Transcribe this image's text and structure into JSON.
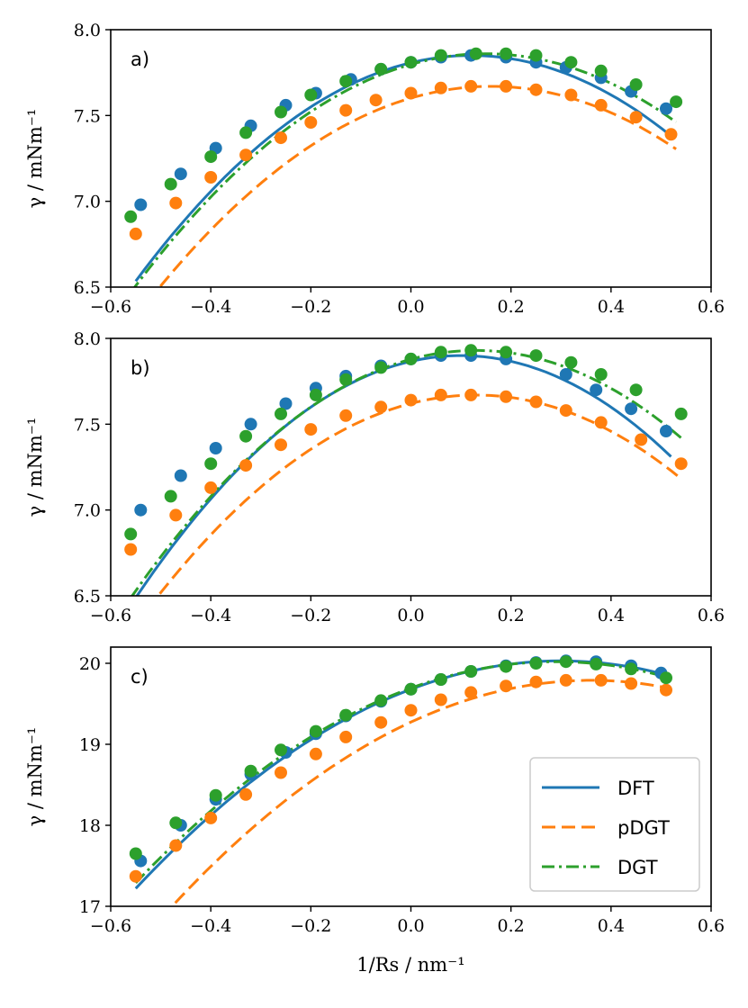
{
  "chart_data": [
    {
      "type": "line",
      "panel_label": "a)",
      "ylabel": "γ / mNm⁻¹",
      "xlabel": "",
      "xlim": [
        -0.6,
        0.6
      ],
      "ylim": [
        6.5,
        8.0
      ],
      "xticks": [
        -0.6,
        -0.4,
        -0.2,
        0.0,
        0.2,
        0.4,
        0.6
      ],
      "xtick_labels": [
        "−0.6",
        "−0.4",
        "−0.2",
        "0.0",
        "0.2",
        "0.4",
        "0.6"
      ],
      "yticks": [
        6.5,
        7.0,
        7.5,
        8.0
      ],
      "ytick_labels": [
        "6.5",
        "7.0",
        "7.5",
        "8.0"
      ],
      "series": [
        {
          "name": "DFT",
          "color": "#1f77b4",
          "dash": "solid",
          "line": {
            "x": [
              -0.55,
              0.52
            ],
            "peak_x": 0.12,
            "peak_y": 7.85,
            "curvature": 2.93
          },
          "points": {
            "x": [
              -0.54,
              -0.46,
              -0.39,
              -0.32,
              -0.25,
              -0.19,
              -0.12,
              -0.06,
              0.0,
              0.06,
              0.12,
              0.19,
              0.25,
              0.31,
              0.38,
              0.44,
              0.51
            ],
            "y": [
              6.98,
              7.16,
              7.31,
              7.44,
              7.56,
              7.63,
              7.71,
              7.77,
              7.81,
              7.84,
              7.85,
              7.84,
              7.81,
              7.78,
              7.72,
              7.64,
              7.54
            ]
          }
        },
        {
          "name": "pDGT",
          "color": "#ff7f0e",
          "dash": "dashed",
          "line": {
            "x": [
              -0.55,
              0.53
            ],
            "peak_x": 0.16,
            "peak_y": 7.67,
            "curvature": 2.67
          },
          "points": {
            "x": [
              -0.55,
              -0.47,
              -0.4,
              -0.33,
              -0.26,
              -0.2,
              -0.13,
              -0.07,
              0.0,
              0.06,
              0.12,
              0.19,
              0.25,
              0.32,
              0.38,
              0.45,
              0.52
            ],
            "y": [
              6.81,
              6.99,
              7.14,
              7.27,
              7.37,
              7.46,
              7.53,
              7.59,
              7.63,
              7.66,
              7.67,
              7.67,
              7.65,
              7.62,
              7.56,
              7.49,
              7.39
            ]
          }
        },
        {
          "name": "DGT",
          "color": "#2ca02c",
          "dash": "dashdot",
          "line": {
            "x": [
              -0.56,
              0.53
            ],
            "peak_x": 0.15,
            "peak_y": 7.86,
            "curvature": 2.76
          },
          "points": {
            "x": [
              -0.56,
              -0.48,
              -0.4,
              -0.33,
              -0.26,
              -0.2,
              -0.13,
              -0.06,
              0.0,
              0.06,
              0.13,
              0.19,
              0.25,
              0.32,
              0.38,
              0.45,
              0.53
            ],
            "y": [
              6.91,
              7.1,
              7.26,
              7.4,
              7.52,
              7.62,
              7.7,
              7.77,
              7.81,
              7.85,
              7.86,
              7.86,
              7.85,
              7.81,
              7.76,
              7.68,
              7.58
            ]
          }
        }
      ]
    },
    {
      "type": "line",
      "panel_label": "b)",
      "ylabel": "γ / mNm⁻¹",
      "xlabel": "",
      "xlim": [
        -0.6,
        0.6
      ],
      "ylim": [
        6.5,
        8.0
      ],
      "xticks": [
        -0.6,
        -0.4,
        -0.2,
        0.0,
        0.2,
        0.4,
        0.6
      ],
      "xtick_labels": [
        "−0.6",
        "−0.4",
        "−0.2",
        "0.0",
        "0.2",
        "0.4",
        "0.6"
      ],
      "yticks": [
        6.5,
        7.0,
        7.5,
        8.0
      ],
      "ytick_labels": [
        "6.5",
        "7.0",
        "7.5",
        "8.0"
      ],
      "series": [
        {
          "name": "DFT",
          "color": "#1f77b4",
          "dash": "solid",
          "line": {
            "x": [
              -0.55,
              0.52
            ],
            "peak_x": 0.1,
            "peak_y": 7.9,
            "curvature": 3.34
          },
          "points": {
            "x": [
              -0.54,
              -0.46,
              -0.39,
              -0.32,
              -0.25,
              -0.19,
              -0.13,
              -0.06,
              0.0,
              0.06,
              0.12,
              0.19,
              0.31,
              0.37,
              0.44,
              0.51
            ],
            "y": [
              7.0,
              7.2,
              7.36,
              7.5,
              7.62,
              7.71,
              7.78,
              7.84,
              7.88,
              7.9,
              7.9,
              7.88,
              7.79,
              7.7,
              7.59,
              7.46
            ]
          }
        },
        {
          "name": "pDGT",
          "color": "#ff7f0e",
          "dash": "dashed",
          "line": {
            "x": [
              -0.55,
              0.54
            ],
            "peak_x": 0.13,
            "peak_y": 7.67,
            "curvature": 2.9
          },
          "points": {
            "x": [
              -0.56,
              -0.47,
              -0.4,
              -0.33,
              -0.26,
              -0.2,
              -0.13,
              -0.06,
              0.0,
              0.06,
              0.12,
              0.19,
              0.25,
              0.31,
              0.38,
              0.46,
              0.54
            ],
            "y": [
              6.77,
              6.97,
              7.13,
              7.26,
              7.38,
              7.47,
              7.55,
              7.6,
              7.64,
              7.67,
              7.67,
              7.66,
              7.63,
              7.58,
              7.51,
              7.41,
              7.27
            ]
          }
        },
        {
          "name": "DGT",
          "color": "#2ca02c",
          "dash": "dashdot",
          "line": {
            "x": [
              -0.56,
              0.54
            ],
            "peak_x": 0.13,
            "peak_y": 7.93,
            "curvature": 3.03
          },
          "points": {
            "x": [
              -0.56,
              -0.48,
              -0.4,
              -0.33,
              -0.26,
              -0.19,
              -0.13,
              -0.06,
              0.0,
              0.06,
              0.12,
              0.19,
              0.25,
              0.32,
              0.38,
              0.45,
              0.54
            ],
            "y": [
              6.86,
              7.08,
              7.27,
              7.43,
              7.56,
              7.67,
              7.76,
              7.83,
              7.88,
              7.92,
              7.93,
              7.92,
              7.9,
              7.86,
              7.79,
              7.7,
              7.56
            ]
          }
        }
      ]
    },
    {
      "type": "line",
      "panel_label": "c)",
      "ylabel": "γ / mNm⁻¹",
      "xlabel": "1/Rs / nm⁻¹",
      "xlim": [
        -0.6,
        0.6
      ],
      "ylim": [
        17,
        20.2
      ],
      "xticks": [
        -0.6,
        -0.4,
        -0.2,
        0.0,
        0.2,
        0.4,
        0.6
      ],
      "xtick_labels": [
        "−0.6",
        "−0.4",
        "−0.2",
        "0.0",
        "0.2",
        "0.4",
        "0.6"
      ],
      "yticks": [
        17,
        18,
        19,
        20
      ],
      "ytick_labels": [
        "17",
        "18",
        "19",
        "20"
      ],
      "legend": {
        "position": "lower-right",
        "entries": [
          "DFT",
          "pDGT",
          "DGT"
        ]
      },
      "series": [
        {
          "name": "DFT",
          "color": "#1f77b4",
          "dash": "solid",
          "line": {
            "x": [
              -0.55,
              0.51
            ],
            "peak_x": 0.3,
            "peak_y": 20.03,
            "curvature": 3.89
          },
          "points": {
            "x": [
              -0.54,
              -0.46,
              -0.39,
              -0.32,
              -0.25,
              -0.19,
              -0.13,
              -0.06,
              0.0,
              0.06,
              0.12,
              0.19,
              0.25,
              0.31,
              0.37,
              0.44,
              0.5
            ],
            "y": [
              17.56,
              18.0,
              18.32,
              18.63,
              18.9,
              19.13,
              19.35,
              19.53,
              19.68,
              19.8,
              19.9,
              19.97,
              20.01,
              20.03,
              20.02,
              19.97,
              19.88
            ]
          }
        },
        {
          "name": "pDGT",
          "color": "#ff7f0e",
          "dash": "dashed",
          "line": {
            "x": [
              -0.55,
              0.51
            ],
            "peak_x": 0.36,
            "peak_y": 19.79,
            "curvature": 3.98
          },
          "points": {
            "x": [
              -0.55,
              -0.47,
              -0.4,
              -0.33,
              -0.26,
              -0.19,
              -0.13,
              -0.06,
              0.0,
              0.06,
              0.12,
              0.19,
              0.25,
              0.31,
              0.38,
              0.44,
              0.51
            ],
            "y": [
              17.37,
              17.75,
              18.09,
              18.38,
              18.65,
              18.88,
              19.09,
              19.27,
              19.42,
              19.55,
              19.64,
              19.72,
              19.77,
              19.79,
              19.79,
              19.75,
              19.67
            ]
          }
        },
        {
          "name": "DGT",
          "color": "#2ca02c",
          "dash": "dashdot",
          "line": {
            "x": [
              -0.55,
              0.51
            ],
            "peak_x": 0.29,
            "peak_y": 20.02,
            "curvature": 3.87
          },
          "points": {
            "x": [
              -0.55,
              -0.47,
              -0.39,
              -0.32,
              -0.26,
              -0.19,
              -0.13,
              -0.06,
              0.0,
              0.06,
              0.12,
              0.19,
              0.25,
              0.31,
              0.37,
              0.44,
              0.51
            ],
            "y": [
              17.65,
              18.03,
              18.37,
              18.67,
              18.93,
              19.16,
              19.36,
              19.54,
              19.68,
              19.8,
              19.9,
              19.96,
              20.0,
              20.02,
              19.99,
              19.93,
              19.82
            ]
          }
        }
      ]
    }
  ]
}
